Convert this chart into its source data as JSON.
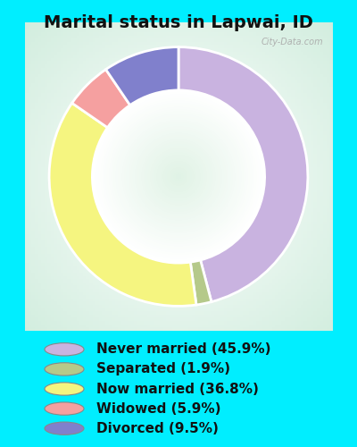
{
  "title": "Marital status in Lapwai, ID",
  "slices": [
    45.9,
    1.9,
    36.8,
    5.9,
    9.5
  ],
  "labels": [
    "Never married (45.9%)",
    "Separated (1.9%)",
    "Now married (36.8%)",
    "Widowed (5.9%)",
    "Divorced (9.5%)"
  ],
  "colors": [
    "#c9b3e0",
    "#b5c98a",
    "#f5f580",
    "#f5a0a0",
    "#8080cc"
  ],
  "outer_background": "#00eeff",
  "chart_bg_color": "#d8ede0",
  "title_fontsize": 14,
  "watermark": "City-Data.com",
  "legend_fontsize": 11,
  "donut_width": 0.35
}
